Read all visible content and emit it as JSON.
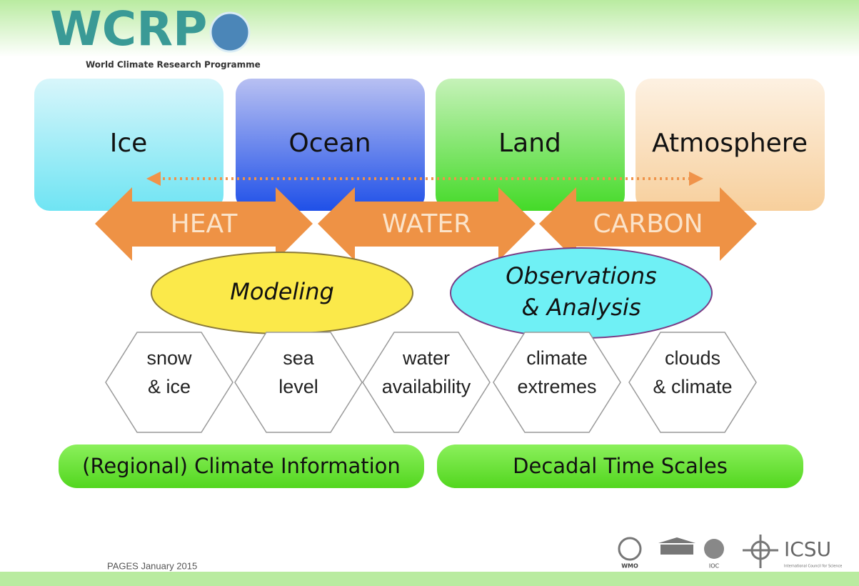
{
  "header": {
    "logo": "WCRP",
    "subtitle": "World Climate Research Programme"
  },
  "components": [
    "Ice",
    "Ocean",
    "Land",
    "Atmosphere"
  ],
  "fluxes": [
    "HEAT",
    "WATER",
    "CARBON"
  ],
  "activities": [
    [
      "Modeling"
    ],
    [
      "Observations",
      "& Analysis"
    ]
  ],
  "challenges": [
    [
      "snow",
      "& ice"
    ],
    [
      "sea",
      "level"
    ],
    [
      "water",
      "availability"
    ],
    [
      "climate",
      "extremes"
    ],
    [
      "clouds",
      "& climate"
    ]
  ],
  "themes": [
    "(Regional) Climate Information",
    "Decadal Time Scales"
  ],
  "footer": {
    "text": "PAGES January 2015",
    "logos": [
      "WMO",
      "IOC",
      "ICSU"
    ],
    "icsu_subtitle": "International Council for Science"
  }
}
